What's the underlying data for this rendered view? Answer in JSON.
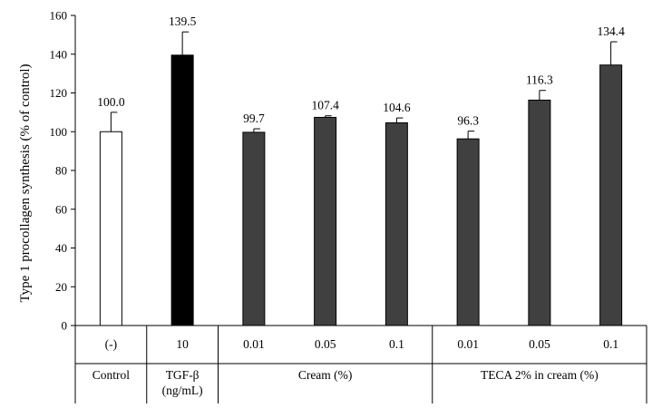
{
  "chart_data": {
    "type": "bar",
    "ylabel": "Type 1 procollagen synthesis (% of control)",
    "ylim": [
      0,
      160
    ],
    "yticks": [
      0,
      20,
      40,
      60,
      80,
      100,
      120,
      140,
      160
    ],
    "grid": false,
    "categories": [
      "(-)",
      "10",
      "0.01",
      "0.05",
      "0.1",
      "0.01",
      "0.05",
      "0.1"
    ],
    "values": [
      100.0,
      139.5,
      99.7,
      107.4,
      104.6,
      96.3,
      116.3,
      134.4
    ],
    "error": [
      10.0,
      12.0,
      1.8,
      0.8,
      2.5,
      4.0,
      5.0,
      12.0
    ],
    "value_labels": [
      "100.0",
      "139.5",
      "99.7",
      "107.4",
      "104.6",
      "96.3",
      "116.3",
      "134.4"
    ],
    "bar_colors": [
      "#ffffff",
      "#000000",
      "#404040",
      "#404040",
      "#404040",
      "#404040",
      "#404040",
      "#404040"
    ],
    "groups": [
      {
        "label": "Control",
        "start": 0,
        "end": 0
      },
      {
        "label": "TGF-β\n(ng/mL)",
        "start": 1,
        "end": 1
      },
      {
        "label": "Cream (%)",
        "start": 2,
        "end": 4
      },
      {
        "label": "TECA 2% in cream (%)",
        "start": 5,
        "end": 7
      }
    ]
  }
}
